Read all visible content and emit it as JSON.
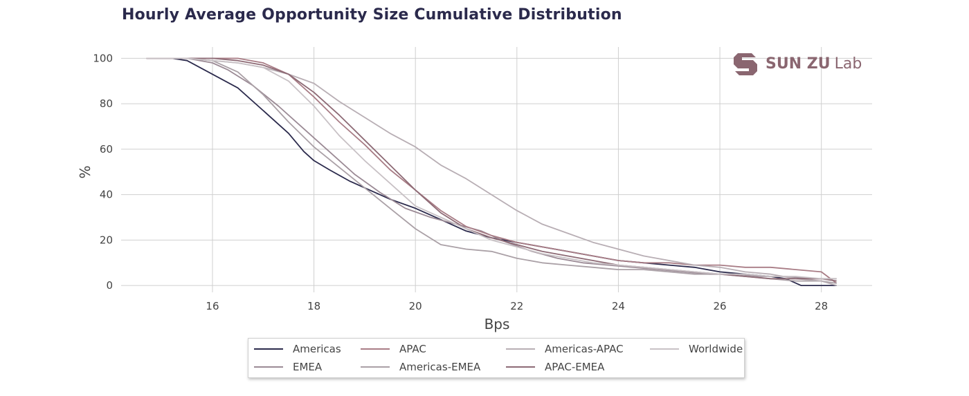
{
  "chart_data": {
    "type": "line",
    "title": "Hourly Average Opportunity Size Cumulative Distribution",
    "xlabel": "Bps",
    "ylabel": "%",
    "xlim": [
      14.2,
      29.0
    ],
    "ylim": [
      -3,
      105
    ],
    "xticks": [
      16,
      18,
      20,
      22,
      24,
      26,
      28
    ],
    "yticks": [
      0,
      20,
      40,
      60,
      80,
      100
    ],
    "grid": true,
    "legend_position": "bottom-center",
    "series": [
      {
        "name": "Americas",
        "color": "#2b2a4c",
        "x": [
          14.7,
          15.2,
          15.5,
          16.0,
          16.5,
          17.0,
          17.5,
          17.8,
          18.0,
          18.3,
          18.7,
          19.0,
          19.5,
          20.0,
          20.5,
          21.0,
          21.5,
          22.0,
          22.5,
          23.0,
          23.5,
          24.0,
          24.5,
          25.0,
          25.5,
          26.0,
          26.5,
          27.0,
          27.3,
          27.6,
          28.3
        ],
        "y": [
          100,
          100,
          99,
          93,
          87,
          77,
          67,
          59,
          55,
          51,
          46,
          43,
          38,
          34,
          29,
          24,
          21,
          19,
          17,
          15,
          13,
          11,
          10,
          9,
          8,
          6,
          5,
          4,
          3,
          0,
          0
        ]
      },
      {
        "name": "EMEA",
        "color": "#9b8a95",
        "x": [
          14.7,
          15.5,
          16.0,
          16.3,
          16.8,
          17.3,
          17.8,
          18.3,
          18.8,
          19.3,
          19.8,
          20.3,
          20.8,
          21.3,
          21.8,
          22.3,
          22.8,
          23.3,
          23.8,
          24.3,
          24.8,
          25.3,
          25.8,
          26.3,
          26.8,
          27.3,
          27.8,
          28.3
        ],
        "y": [
          100,
          100,
          98,
          95,
          88,
          79,
          69,
          59,
          49,
          41,
          34,
          30,
          27,
          24,
          19,
          15,
          12,
          10,
          9,
          8,
          7,
          6,
          5,
          5,
          4,
          4,
          3,
          3
        ]
      },
      {
        "name": "APAC",
        "color": "#a87c85",
        "x": [
          14.7,
          15.5,
          16.0,
          16.5,
          17.0,
          17.5,
          18.0,
          18.5,
          19.0,
          19.5,
          20.0,
          20.5,
          21.0,
          21.5,
          22.0,
          22.5,
          23.0,
          23.5,
          24.0,
          24.5,
          25.0,
          25.5,
          26.0,
          26.5,
          27.0,
          27.5,
          28.0,
          28.3
        ],
        "y": [
          100,
          100,
          100,
          100,
          98,
          93,
          83,
          72,
          62,
          51,
          42,
          33,
          26,
          22,
          19,
          17,
          15,
          13,
          11,
          10,
          10,
          9,
          9,
          8,
          8,
          7,
          6,
          1
        ]
      },
      {
        "name": "Americas-EMEA",
        "color": "#aaa0a6",
        "x": [
          14.7,
          15.5,
          16.0,
          16.5,
          17.0,
          17.5,
          18.0,
          18.5,
          19.0,
          19.5,
          20.0,
          20.5,
          21.0,
          21.5,
          22.0,
          22.5,
          23.0,
          23.5,
          24.0,
          24.5,
          25.0,
          25.5,
          26.0,
          26.5,
          27.0,
          27.5,
          28.0,
          28.3
        ],
        "y": [
          100,
          100,
          99,
          94,
          84,
          72,
          61,
          52,
          43,
          34,
          25,
          18,
          16,
          15,
          12,
          10,
          9,
          8,
          7,
          7,
          6,
          5,
          5,
          4,
          3,
          2,
          2,
          1
        ]
      },
      {
        "name": "Americas-APAC",
        "color": "#b8aeb4",
        "x": [
          14.7,
          15.5,
          16.0,
          16.5,
          17.0,
          17.5,
          18.0,
          18.5,
          19.0,
          19.5,
          20.0,
          20.5,
          21.0,
          21.5,
          22.0,
          22.5,
          23.0,
          23.5,
          24.0,
          24.5,
          25.0,
          25.5,
          26.0,
          26.5,
          27.0,
          27.5,
          28.0,
          28.3
        ],
        "y": [
          100,
          100,
          99,
          98,
          96,
          93,
          89,
          81,
          74,
          67,
          61,
          53,
          47,
          40,
          33,
          27,
          23,
          19,
          16,
          13,
          11,
          9,
          8,
          6,
          5,
          3,
          2,
          0
        ]
      },
      {
        "name": "APAC-EMEA",
        "color": "#8d6a75",
        "x": [
          14.7,
          15.5,
          16.0,
          16.5,
          17.0,
          17.5,
          18.0,
          18.5,
          19.0,
          19.5,
          20.0,
          20.5,
          21.0,
          21.5,
          22.0,
          22.5,
          23.0,
          23.5,
          24.0,
          24.5,
          25.0,
          25.5,
          26.0,
          26.5,
          27.0,
          27.5,
          28.0,
          28.3
        ],
        "y": [
          100,
          100,
          100,
          99,
          97,
          93,
          85,
          75,
          64,
          53,
          42,
          32,
          25,
          21,
          18,
          15,
          13,
          11,
          9,
          8,
          7,
          6,
          5,
          4,
          3,
          3,
          3,
          2
        ]
      },
      {
        "name": "Worldwide",
        "color": "#c8c1c5",
        "x": [
          14.7,
          15.5,
          16.0,
          16.5,
          17.0,
          17.5,
          18.0,
          18.5,
          19.0,
          19.5,
          20.0,
          20.5,
          21.0,
          21.5,
          22.0,
          22.5,
          23.0,
          23.5,
          24.0,
          24.5,
          25.0,
          25.5,
          26.0,
          26.5,
          27.0,
          27.5,
          28.0,
          28.3
        ],
        "y": [
          100,
          100,
          99,
          98,
          96,
          90,
          79,
          66,
          55,
          45,
          35,
          30,
          25,
          20,
          17,
          14,
          12,
          10,
          9,
          8,
          7,
          6,
          5,
          5,
          4,
          4,
          3,
          3
        ]
      }
    ]
  },
  "logo": {
    "bold": "SUN ZU",
    "light": "Lab"
  }
}
